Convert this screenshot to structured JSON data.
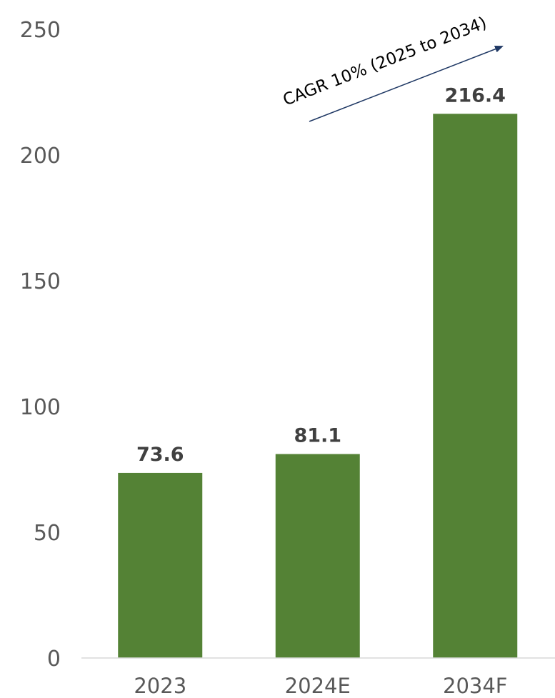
{
  "chart_data": {
    "type": "bar",
    "title": "",
    "xlabel": "",
    "ylabel": "",
    "categories": [
      "2023",
      "2024E",
      "2034F"
    ],
    "values": [
      73.6,
      81.1,
      216.4
    ],
    "value_labels": [
      "73.6",
      "81.1",
      "216.4"
    ],
    "ylim": [
      0,
      250
    ],
    "yticks": [
      "0",
      "50",
      "100",
      "150",
      "200",
      "250"
    ],
    "grid": false,
    "legend": "none",
    "bar_color": "#548235",
    "annotation": {
      "text": "CAGR 10% (2025 to 2034)",
      "arrow_color": "#1F3864"
    }
  }
}
